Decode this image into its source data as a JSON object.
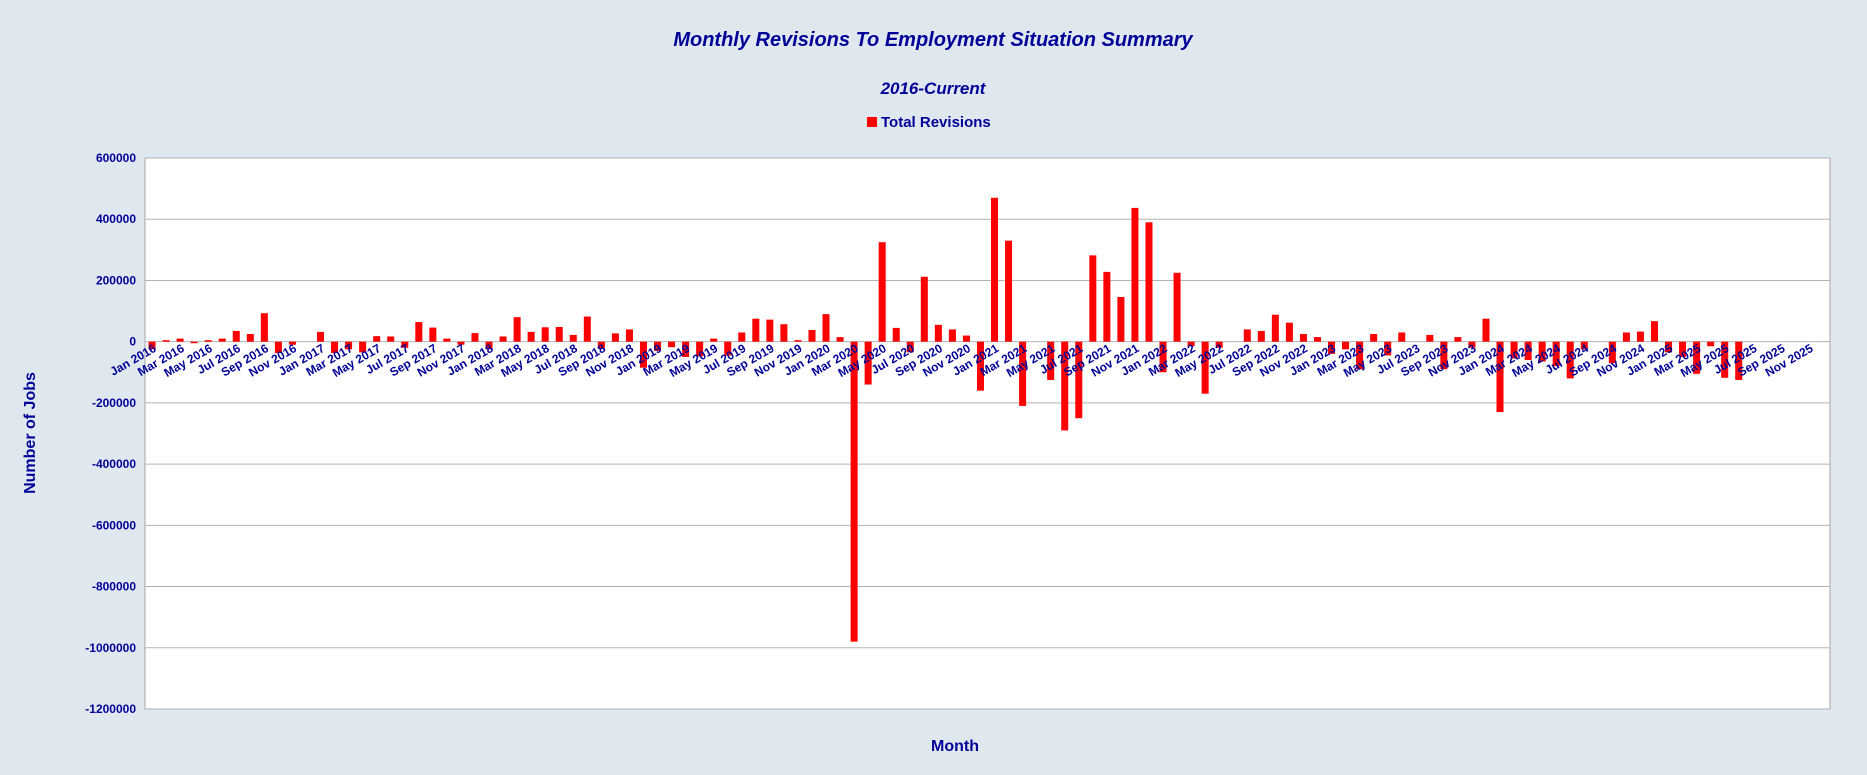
{
  "chart_data": {
    "type": "bar",
    "title": "Monthly Revisions To Employment Situation Summary",
    "subtitle": "2016-Current",
    "xlabel": "Month",
    "ylabel": "Number of Jobs",
    "legend": {
      "position": "top-center",
      "entries": [
        "Total Revisions"
      ]
    },
    "grid": true,
    "ylim": [
      -1200000,
      600000
    ],
    "yticks": [
      600000,
      400000,
      200000,
      0,
      -200000,
      -400000,
      -600000,
      -800000,
      -1000000,
      -1200000
    ],
    "categories": [
      "Jan 2016",
      "Feb 2016",
      "Mar 2016",
      "Apr 2016",
      "May 2016",
      "Jun 2016",
      "Jul 2016",
      "Aug 2016",
      "Sep 2016",
      "Oct 2016",
      "Nov 2016",
      "Dec 2016",
      "Jan 2017",
      "Feb 2017",
      "Mar 2017",
      "Apr 2017",
      "May 2017",
      "Jun 2017",
      "Jul 2017",
      "Aug 2017",
      "Sep 2017",
      "Oct 2017",
      "Nov 2017",
      "Dec 2017",
      "Jan 2018",
      "Feb 2018",
      "Mar 2018",
      "Apr 2018",
      "May 2018",
      "Jun 2018",
      "Jul 2018",
      "Aug 2018",
      "Sep 2018",
      "Oct 2018",
      "Nov 2018",
      "Dec 2018",
      "Jan 2019",
      "Feb 2019",
      "Mar 2019",
      "Apr 2019",
      "May 2019",
      "Jun 2019",
      "Jul 2019",
      "Aug 2019",
      "Sep 2019",
      "Oct 2019",
      "Nov 2019",
      "Dec 2019",
      "Jan 2020",
      "Feb 2020",
      "Mar 2020",
      "Apr 2020",
      "May 2020",
      "Jun 2020",
      "Jul 2020",
      "Aug 2020",
      "Sep 2020",
      "Oct 2020",
      "Nov 2020",
      "Dec 2020",
      "Jan 2021",
      "Feb 2021",
      "Mar 2021",
      "Apr 2021",
      "May 2021",
      "Jun 2021",
      "Jul 2021",
      "Aug 2021",
      "Sep 2021",
      "Oct 2021",
      "Nov 2021",
      "Dec 2021",
      "Jan 2022",
      "Feb 2022",
      "Mar 2022",
      "Apr 2022",
      "May 2022",
      "Jun 2022",
      "Jul 2022",
      "Aug 2022",
      "Sep 2022",
      "Oct 2022",
      "Nov 2022",
      "Dec 2022",
      "Jan 2023",
      "Feb 2023",
      "Mar 2023",
      "Apr 2023",
      "May 2023",
      "Jun 2023",
      "Jul 2023",
      "Aug 2023",
      "Sep 2023",
      "Oct 2023",
      "Nov 2023",
      "Dec 2023",
      "Jan 2024",
      "Feb 2024",
      "Mar 2024",
      "Apr 2024",
      "May 2024",
      "Jun 2024",
      "Jul 2024",
      "Aug 2024",
      "Sep 2024",
      "Oct 2024",
      "Nov 2024",
      "Dec 2024",
      "Jan 2025",
      "Feb 2025",
      "Mar 2025",
      "Apr 2025",
      "May 2025",
      "Jun 2025",
      "Jul 2025",
      "Aug 2025",
      "Sep 2025",
      "Oct 2025",
      "Nov 2025",
      "Dec 2025"
    ],
    "series": [
      {
        "name": "Total Revisions",
        "color": "#ff0000",
        "values": [
          -25000,
          5000,
          10000,
          -5000,
          5000,
          10000,
          35000,
          25000,
          93000,
          -37000,
          -10000,
          0,
          32000,
          -37000,
          -25000,
          -35000,
          18000,
          17000,
          -20000,
          64000,
          46000,
          10000,
          -10000,
          28000,
          -25000,
          17000,
          80000,
          32000,
          47000,
          48000,
          22000,
          82000,
          -23000,
          27000,
          40000,
          -85000,
          -30000,
          -18000,
          -50000,
          -48000,
          10000,
          -45000,
          30000,
          75000,
          72000,
          57000,
          5000,
          38000,
          90000,
          15000,
          -980000,
          -140000,
          325000,
          45000,
          -35000,
          212000,
          55000,
          40000,
          20000,
          -160000,
          470000,
          330000,
          -210000,
          0,
          -125000,
          -290000,
          -250000,
          282000,
          228000,
          146000,
          437000,
          390000,
          -100000,
          225000,
          -15000,
          -170000,
          -20000,
          0,
          40000,
          35000,
          88000,
          62000,
          25000,
          15000,
          -40000,
          -25000,
          -90000,
          25000,
          -45000,
          30000,
          0,
          22000,
          -90000,
          15000,
          -20000,
          75000,
          -230000,
          -55000,
          -60000,
          -65000,
          -80000,
          -120000,
          -25000,
          0,
          -70000,
          30000,
          33000,
          67000,
          -35000,
          -50000,
          -105000,
          -15000,
          -118000,
          -125000,
          0,
          0,
          0,
          0,
          0,
          0
        ]
      }
    ],
    "shown_x_ticks": [
      "Jan 2016",
      "Mar 2016",
      "May 2016",
      "Jul 2016",
      "Sep 2016",
      "Nov 2016",
      "Jan 2017",
      "Mar 2017",
      "May 2017",
      "Jul 2017",
      "Sep 2017",
      "Nov 2017",
      "Jan 2018",
      "Mar 2018",
      "May 2018",
      "Jul 2018",
      "Sep 2018",
      "Nov 2018",
      "Jan 2019",
      "Mar 2019",
      "May 2019",
      "Jul 2019",
      "Sep 2019",
      "Nov 2019",
      "Jan 2020",
      "Mar 2020",
      "May 2020",
      "Jul 2020",
      "Sep 2020",
      "Nov 2020",
      "Jan 2021",
      "Mar 2021",
      "May 2021",
      "Jul 2021",
      "Sep 2021",
      "Nov 2021",
      "Jan 2022",
      "Mar 2022",
      "May 2022",
      "Jul 2022",
      "Sep 2022",
      "Nov 2022",
      "Jan 2023",
      "Mar 2023",
      "May 2023",
      "Jul 2023",
      "Sep 2023",
      "Nov 2023",
      "Jan 2024",
      "Mar 2024",
      "May 2024",
      "Jul 2024",
      "Sep 2024",
      "Nov 2024",
      "Jan 2025",
      "Mar 2025",
      "May 2025",
      "Jul 2025",
      "Sep 2025",
      "Nov 2025"
    ]
  },
  "colors": {
    "background": "#dfe7ef",
    "plot_area": "#ffffff",
    "text": "#000099",
    "bar": "#ff0000",
    "grid": "#b3b3b3"
  }
}
